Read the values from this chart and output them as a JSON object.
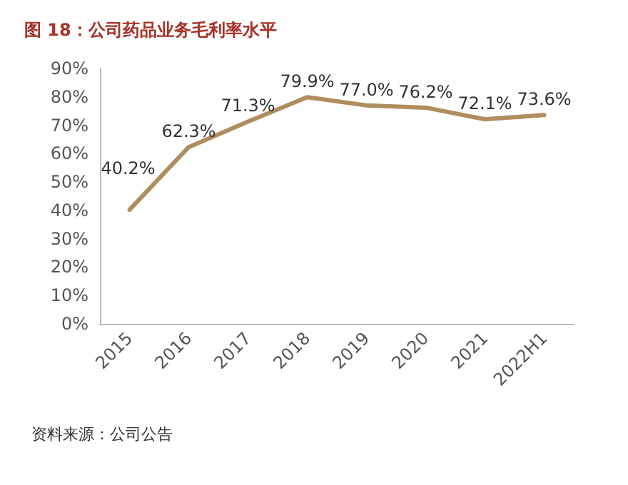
{
  "chart_data": {
    "type": "line",
    "title": "图 18：公司药品业务毛利率水平",
    "categories": [
      "2015",
      "2016",
      "2017",
      "2018",
      "2019",
      "2020",
      "2021",
      "2022H1"
    ],
    "series": [
      {
        "color": "#b08d5e",
        "values": [
          40.2,
          62.3,
          71.3,
          79.9,
          77.0,
          76.2,
          72.1,
          73.6
        ],
        "value_labels": [
          "40.2%",
          "62.3%",
          "71.3%",
          "79.9%",
          "77.0%",
          "76.2%",
          "72.1%",
          "73.6%"
        ]
      }
    ],
    "ylim": [
      0,
      90
    ],
    "yticks": [
      {
        "value": 0,
        "label": "0%"
      },
      {
        "value": 10,
        "label": "10%"
      },
      {
        "value": 20,
        "label": "20%"
      },
      {
        "value": 30,
        "label": "30%"
      },
      {
        "value": 40,
        "label": "40%"
      },
      {
        "value": 50,
        "label": "50%"
      },
      {
        "value": 60,
        "label": "60%"
      },
      {
        "value": 70,
        "label": "70%"
      },
      {
        "value": 80,
        "label": "80%"
      },
      {
        "value": 90,
        "label": "90%"
      }
    ],
    "grid": false,
    "marker": "none",
    "line_style": "solid",
    "annotations": [
      "资料来源：公司公告"
    ]
  }
}
